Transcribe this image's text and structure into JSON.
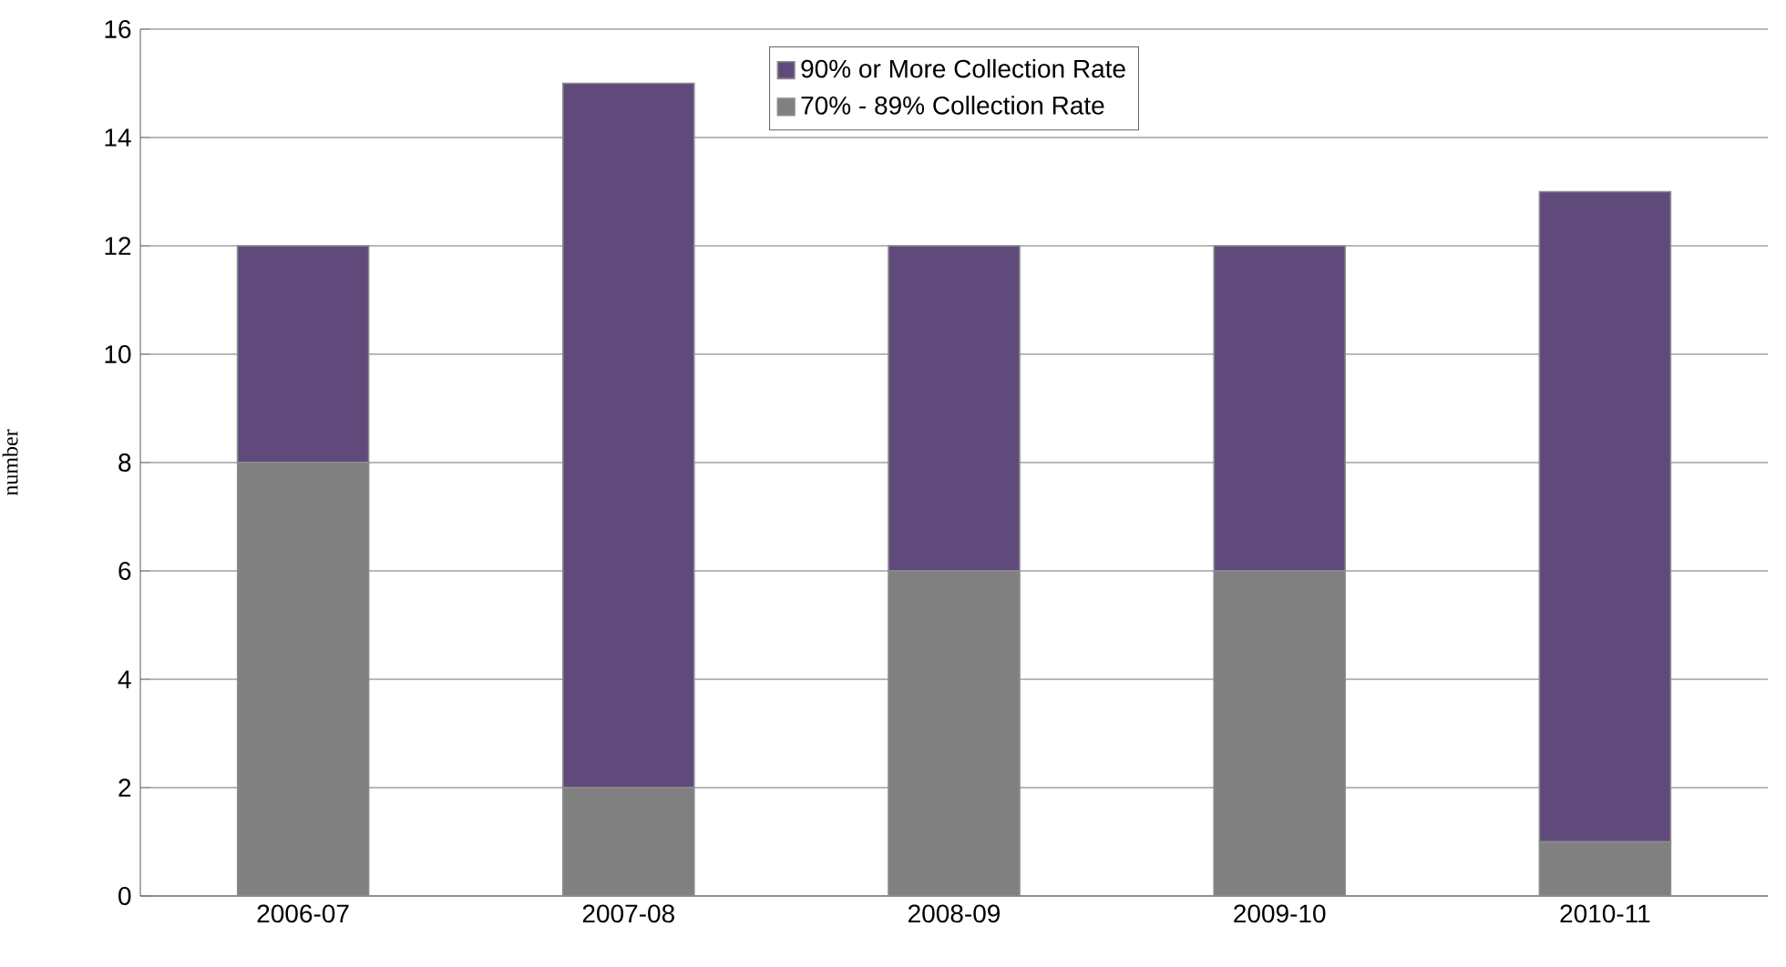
{
  "chart_data": {
    "type": "bar",
    "stacked": true,
    "ylabel": "number",
    "categories": [
      "2006-07",
      "2007-08",
      "2008-09",
      "2009-10",
      "2010-11"
    ],
    "series": [
      {
        "name": "70% - 89% Collection Rate",
        "color": "#808080",
        "values": [
          8,
          2,
          6,
          6,
          1
        ]
      },
      {
        "name": "90% or More Collection Rate",
        "color": "#604a7b",
        "values": [
          4,
          13,
          6,
          6,
          12
        ]
      }
    ],
    "ylim": [
      0,
      16
    ],
    "yticks": [
      0,
      2,
      4,
      6,
      8,
      10,
      12,
      14,
      16
    ],
    "grid": "y",
    "legend": "top"
  }
}
